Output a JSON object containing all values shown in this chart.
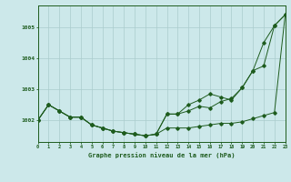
{
  "title": "Graphe pression niveau de la mer (hPa)",
  "background_color": "#cce8ea",
  "grid_color": "#aacccc",
  "line_color": "#1e5c1e",
  "x_values": [
    0,
    1,
    2,
    3,
    4,
    5,
    6,
    7,
    8,
    9,
    10,
    11,
    12,
    13,
    14,
    15,
    16,
    17,
    18,
    19,
    20,
    21,
    22,
    23
  ],
  "series1": [
    1002.0,
    1002.5,
    1002.3,
    1002.1,
    1002.1,
    1001.85,
    1001.75,
    1001.65,
    1001.6,
    1001.55,
    1001.5,
    1001.55,
    1001.75,
    1001.75,
    1001.75,
    1001.8,
    1001.85,
    1001.9,
    1001.9,
    1001.95,
    1002.05,
    1002.15,
    1002.25,
    1005.4
  ],
  "series2": [
    1002.0,
    1002.5,
    1002.3,
    1002.1,
    1002.1,
    1001.85,
    1001.75,
    1001.65,
    1001.6,
    1001.55,
    1001.5,
    1001.55,
    1002.2,
    1002.2,
    1002.3,
    1002.45,
    1002.4,
    1002.6,
    1002.7,
    1003.05,
    1003.6,
    1003.75,
    1005.05,
    1005.4
  ],
  "series3": [
    1002.0,
    1002.5,
    1002.3,
    1002.1,
    1002.1,
    1001.85,
    1001.75,
    1001.65,
    1001.6,
    1001.55,
    1001.5,
    1001.55,
    1002.2,
    1002.2,
    1002.5,
    1002.65,
    1002.85,
    1002.75,
    1002.65,
    1003.05,
    1003.6,
    1004.5,
    1005.05,
    1005.4
  ],
  "ylim_min": 1001.3,
  "ylim_max": 1005.7,
  "yticks": [
    1002,
    1003,
    1004,
    1005
  ],
  "xlim_min": 0,
  "xlim_max": 23,
  "figwidth": 3.2,
  "figheight": 2.0,
  "dpi": 100
}
